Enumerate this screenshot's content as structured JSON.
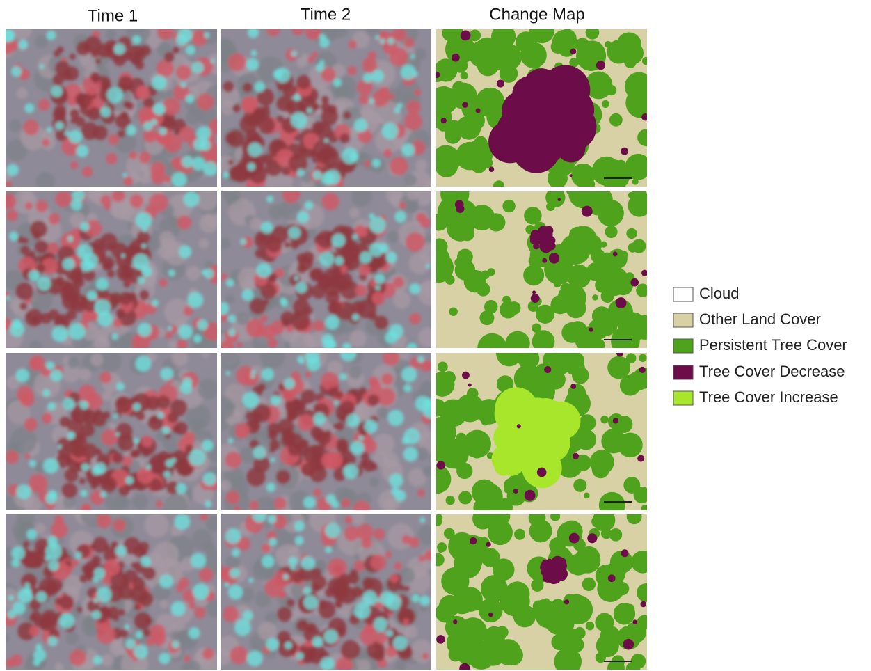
{
  "headers": [
    "Time 1",
    "Time 2",
    "Change Map"
  ],
  "legend": [
    {
      "label": "Cloud",
      "color": "#ffffff"
    },
    {
      "label": "Other Land Cover",
      "color": "#d9d1a6"
    },
    {
      "label": "Persistent Tree Cover",
      "color": "#4fa21b"
    },
    {
      "label": "Tree Cover Decrease",
      "color": "#6c0c48"
    },
    {
      "label": "Tree Cover Increase",
      "color": "#a8e62c"
    }
  ]
}
